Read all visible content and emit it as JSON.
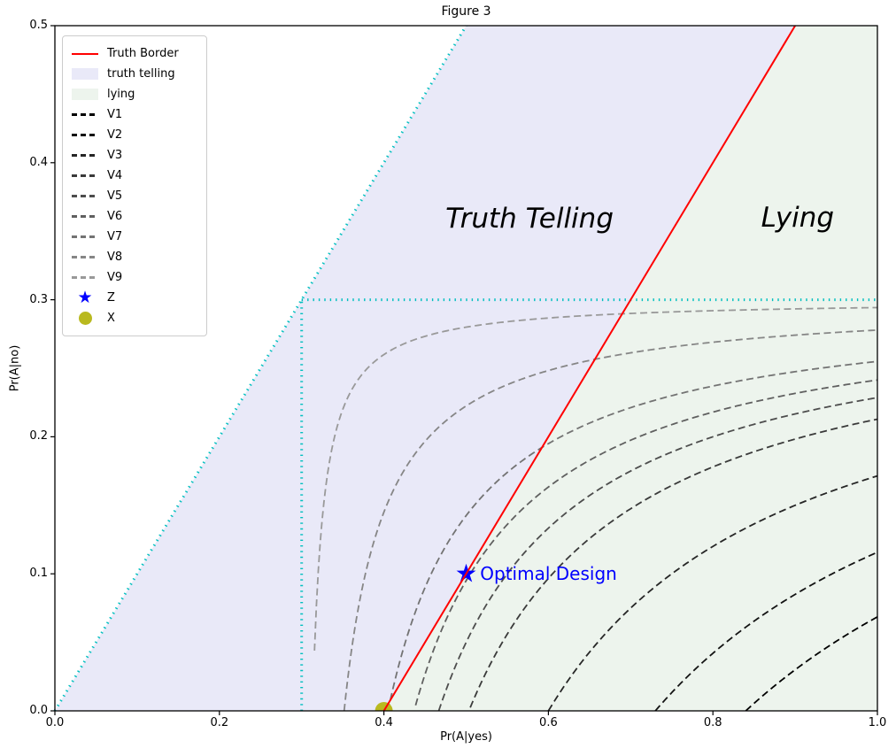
{
  "chart_data": {
    "type": "line",
    "title": "Figure 3",
    "xlabel": "Pr(A|yes)",
    "ylabel": "Pr(A|no)",
    "xlim": [
      0,
      1.0
    ],
    "ylim": [
      0,
      0.5
    ],
    "grid": false,
    "legend_position": "upper left",
    "xticks": [
      "0.0",
      "0.2",
      "0.4",
      "0.6",
      "0.8",
      "1.0"
    ],
    "yticks": [
      "0.0",
      "0.1",
      "0.2",
      "0.3",
      "0.4",
      "0.5"
    ],
    "regions": [
      {
        "name": "truth telling",
        "color": "#e9e9f8",
        "polygon": [
          [
            0,
            0
          ],
          [
            0.5,
            0.5
          ],
          [
            0.9,
            0.5
          ],
          [
            0.4,
            0
          ]
        ]
      },
      {
        "name": "lying",
        "color": "#edf4ed",
        "polygon": [
          [
            0.4,
            0
          ],
          [
            0.9,
            0.5
          ],
          [
            1.0,
            0.5
          ],
          [
            1.0,
            0
          ]
        ]
      }
    ],
    "truth_border": {
      "label": "Truth Border",
      "color": "#ff0000",
      "x1": 0.4,
      "y1": 0.0,
      "x2": 0.9,
      "y2": 0.5
    },
    "constraint_lines": {
      "color": "#00bfbf",
      "style": "dotted",
      "segments": [
        {
          "x1": 0.0,
          "y1": 0.0,
          "x2": 0.5,
          "y2": 0.5
        },
        {
          "x1": 0.3,
          "y1": 0.0,
          "x2": 0.3,
          "y2": 0.3
        },
        {
          "x1": 0.3,
          "y1": 0.3,
          "x2": 1.0,
          "y2": 0.3
        }
      ]
    },
    "value_curves": {
      "model": "(x - 0.3) * (0.3 - y) = c",
      "corner": [
        0.3,
        0.3
      ],
      "dash": "dashed",
      "series": [
        {
          "name": "V1",
          "color": "#000000",
          "c": 0.162,
          "x_at_y0": 0.84,
          "y_at_x1": 0.069
        },
        {
          "name": "V2",
          "color": "#131313",
          "c": 0.129,
          "x_at_y0": 0.73,
          "y_at_x1": 0.116
        },
        {
          "name": "V3",
          "color": "#262626",
          "c": 0.09,
          "x_at_y0": 0.6,
          "y_at_x1": 0.171
        },
        {
          "name": "V4",
          "color": "#3a3a3a",
          "c": 0.061,
          "x_at_y0": 0.503,
          "y_at_x1": 0.213
        },
        {
          "name": "V5",
          "color": "#4d4d4d",
          "c": 0.05,
          "x_at_y0": 0.467,
          "y_at_x1": 0.229
        },
        {
          "name": "V6",
          "color": "#606060",
          "c": 0.041,
          "x_at_y0": 0.437,
          "y_at_x1": 0.241
        },
        {
          "name": "V7",
          "color": "#737373",
          "c": 0.0315,
          "x_at_y0": 0.405,
          "y_at_x1": 0.255
        },
        {
          "name": "V8",
          "color": "#868686",
          "c": 0.0155,
          "x_at_y0": 0.352,
          "y_at_x1": 0.278
        },
        {
          "name": "V9",
          "color": "#999999",
          "c": 0.004,
          "x_at_y0": 0.313,
          "y_at_x1": 0.294
        }
      ]
    },
    "markers": [
      {
        "name": "Z",
        "shape": "star",
        "color": "#0000ff",
        "x": 0.5,
        "y": 0.1
      },
      {
        "name": "X",
        "shape": "circle",
        "color": "#b9b91f",
        "x": 0.4,
        "y": 0.0
      }
    ],
    "annotations": [
      {
        "id": "truth-telling",
        "text": "Truth Telling",
        "x": 0.577,
        "y": 0.359,
        "color": "#000000"
      },
      {
        "id": "lying",
        "text": "Lying",
        "x": 0.903,
        "y": 0.36,
        "color": "#000000"
      },
      {
        "id": "optimal-design",
        "text": "Optimal Design",
        "x": 0.517,
        "y": 0.1,
        "color": "#0000ff"
      }
    ],
    "legend": [
      {
        "type": "line",
        "color": "#ff0000",
        "label": "Truth Border"
      },
      {
        "type": "patch",
        "color": "#e9e9f8",
        "label": "truth telling"
      },
      {
        "type": "patch",
        "color": "#edf4ed",
        "label": "lying"
      },
      {
        "type": "dash",
        "color": "#000000",
        "label": "V1"
      },
      {
        "type": "dash",
        "color": "#131313",
        "label": "V2"
      },
      {
        "type": "dash",
        "color": "#262626",
        "label": "V3"
      },
      {
        "type": "dash",
        "color": "#3a3a3a",
        "label": "V4"
      },
      {
        "type": "dash",
        "color": "#4d4d4d",
        "label": "V5"
      },
      {
        "type": "dash",
        "color": "#606060",
        "label": "V6"
      },
      {
        "type": "dash",
        "color": "#737373",
        "label": "V7"
      },
      {
        "type": "dash",
        "color": "#868686",
        "label": "V8"
      },
      {
        "type": "dash",
        "color": "#999999",
        "label": "V9"
      },
      {
        "type": "star",
        "color": "#0000ff",
        "label": "Z"
      },
      {
        "type": "dot",
        "color": "#b9b91f",
        "label": "X"
      }
    ]
  }
}
